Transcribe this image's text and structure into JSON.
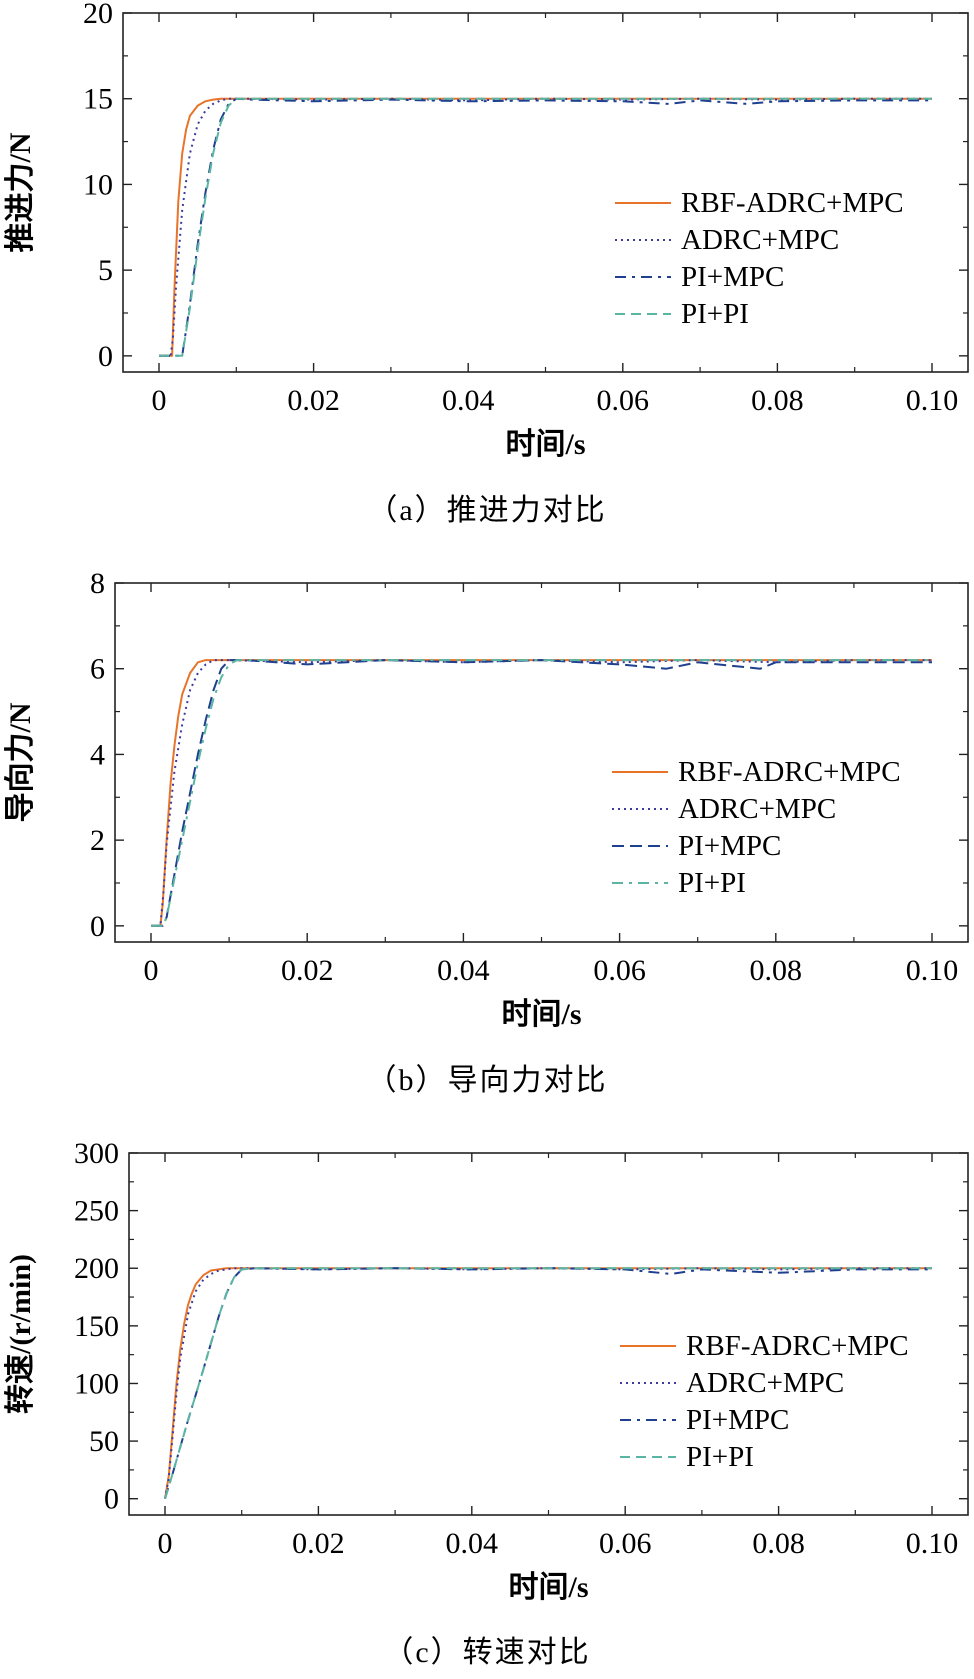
{
  "series_styles": [
    {
      "color": "#e8742a",
      "dash": "",
      "width": 2
    },
    {
      "color": "#3a3aa0",
      "dash": "2 4",
      "width": 2
    },
    {
      "color": "#1f3f8f",
      "dash": "11 6 3 6",
      "width": 2
    },
    {
      "color": "#5ab5a3",
      "dash": "10 6",
      "width": 2
    }
  ],
  "series_styles_b": [
    {
      "color": "#e8742a",
      "dash": "",
      "width": 2
    },
    {
      "color": "#3a3aa0",
      "dash": "2 4",
      "width": 2
    },
    {
      "color": "#1f3f8f",
      "dash": "12 6",
      "width": 2
    },
    {
      "color": "#5ab5a3",
      "dash": "11 6 3 6",
      "width": 2
    }
  ],
  "chart_data": [
    {
      "type": "line",
      "caption": "（a）推进力对比",
      "xlabel": "时间/s",
      "ylabel": "推进力/N",
      "xlim": [
        0,
        0.1
      ],
      "ylim": [
        0,
        20
      ],
      "xticks": [
        0,
        0.02,
        0.04,
        0.06,
        0.08,
        0.1
      ],
      "xtick_labels": [
        "0",
        "0.02",
        "0.04",
        "0.06",
        "0.08",
        "0.10"
      ],
      "yticks": [
        0,
        5,
        10,
        15,
        20
      ],
      "ytick_labels": [
        "0",
        "5",
        "10",
        "15",
        "20"
      ],
      "legend_position": "center-right",
      "series": [
        {
          "name": "RBF-ADRC+MPC",
          "x": [
            0,
            0.0015,
            0.0017,
            0.002,
            0.0025,
            0.003,
            0.0035,
            0.004,
            0.005,
            0.006,
            0.007,
            0.008,
            0.01,
            0.02,
            0.04,
            0.06,
            0.08,
            0.1
          ],
          "y": [
            0,
            0,
            0,
            4,
            9,
            11.8,
            13.2,
            14,
            14.6,
            14.85,
            14.95,
            15,
            15,
            15,
            15,
            15,
            15,
            15
          ]
        },
        {
          "name": "ADRC+MPC",
          "x": [
            0,
            0.0015,
            0.0018,
            0.0022,
            0.003,
            0.004,
            0.005,
            0.006,
            0.007,
            0.008,
            0.009,
            0.01,
            0.011,
            0.02,
            0.03,
            0.04,
            0.05,
            0.06,
            0.07,
            0.08,
            0.09,
            0.1
          ],
          "y": [
            0,
            0,
            1,
            4,
            8.5,
            11.8,
            13.5,
            14.3,
            14.7,
            14.9,
            15,
            15,
            15,
            14.95,
            15,
            14.9,
            15,
            14.95,
            15,
            14.95,
            15,
            15
          ]
        },
        {
          "name": "PI+MPC",
          "x": [
            0,
            0.003,
            0.004,
            0.005,
            0.006,
            0.007,
            0.008,
            0.009,
            0.01,
            0.012,
            0.02,
            0.03,
            0.04,
            0.05,
            0.06,
            0.066,
            0.07,
            0.076,
            0.08,
            0.09,
            0.1
          ],
          "y": [
            0,
            0,
            3,
            6.5,
            9.5,
            12,
            13.8,
            14.7,
            15,
            14.95,
            14.85,
            14.95,
            14.85,
            14.9,
            14.85,
            14.7,
            14.9,
            14.7,
            14.85,
            14.9,
            14.9
          ]
        },
        {
          "name": "PI+PI",
          "x": [
            0,
            0.003,
            0.004,
            0.005,
            0.006,
            0.007,
            0.008,
            0.009,
            0.01,
            0.012,
            0.02,
            0.04,
            0.06,
            0.08,
            0.1
          ],
          "y": [
            0,
            0,
            2.8,
            6.2,
            9.2,
            11.8,
            13.6,
            14.6,
            15,
            15,
            15,
            15,
            15,
            15,
            15
          ]
        }
      ]
    },
    {
      "type": "line",
      "caption": "（b）导向力对比",
      "xlabel": "时间/s",
      "ylabel": "导向力/N",
      "xlim": [
        0,
        0.1
      ],
      "ylim": [
        0,
        8
      ],
      "xticks": [
        0,
        0.02,
        0.04,
        0.06,
        0.08,
        0.1
      ],
      "xtick_labels": [
        "0",
        "0.02",
        "0.04",
        "0.06",
        "0.08",
        "0.10"
      ],
      "yticks": [
        0,
        2,
        4,
        6,
        8
      ],
      "ytick_labels": [
        "0",
        "2",
        "4",
        "6",
        "8"
      ],
      "legend_position": "center-right",
      "series": [
        {
          "name": "RBF-ADRC+MPC",
          "x": [
            0,
            0.0012,
            0.0015,
            0.002,
            0.0025,
            0.003,
            0.0035,
            0.004,
            0.005,
            0.006,
            0.007,
            0.008,
            0.01,
            0.02,
            0.04,
            0.06,
            0.08,
            0.1
          ],
          "y": [
            0,
            0,
            0.5,
            2,
            3.3,
            4.2,
            4.9,
            5.4,
            5.9,
            6.15,
            6.2,
            6.2,
            6.2,
            6.2,
            6.2,
            6.2,
            6.2,
            6.2
          ]
        },
        {
          "name": "ADRC+MPC",
          "x": [
            0,
            0.0012,
            0.0016,
            0.002,
            0.003,
            0.004,
            0.005,
            0.006,
            0.007,
            0.008,
            0.01,
            0.02,
            0.03,
            0.04,
            0.05,
            0.06,
            0.07,
            0.08,
            0.09,
            0.1
          ],
          "y": [
            0,
            0,
            0.8,
            1.9,
            3.6,
            4.7,
            5.5,
            5.9,
            6.1,
            6.2,
            6.2,
            6.15,
            6.2,
            6.15,
            6.2,
            6.15,
            6.2,
            6.15,
            6.2,
            6.2
          ]
        },
        {
          "name": "PI+MPC",
          "x": [
            0,
            0.0015,
            0.002,
            0.003,
            0.004,
            0.005,
            0.006,
            0.007,
            0.008,
            0.009,
            0.01,
            0.012,
            0.02,
            0.03,
            0.04,
            0.05,
            0.06,
            0.066,
            0.07,
            0.078,
            0.08,
            0.09,
            0.1
          ],
          "y": [
            0,
            0,
            0.2,
            1.2,
            2.2,
            3.1,
            4,
            4.8,
            5.5,
            6,
            6.2,
            6.2,
            6.1,
            6.2,
            6.15,
            6.2,
            6.1,
            6.0,
            6.15,
            6.0,
            6.15,
            6.15,
            6.15
          ]
        },
        {
          "name": "PI+PI",
          "x": [
            0,
            0.0015,
            0.002,
            0.003,
            0.004,
            0.005,
            0.006,
            0.007,
            0.008,
            0.009,
            0.01,
            0.011,
            0.012,
            0.02,
            0.04,
            0.06,
            0.08,
            0.1
          ],
          "y": [
            0,
            0,
            0.2,
            1.1,
            2,
            2.9,
            3.8,
            4.6,
            5.3,
            5.8,
            6.1,
            6.2,
            6.2,
            6.2,
            6.2,
            6.2,
            6.2,
            6.2
          ]
        }
      ]
    },
    {
      "type": "line",
      "caption": "（c）转速对比",
      "xlabel": "时间/s",
      "ylabel": "转速/(r/min)",
      "xlim": [
        0,
        0.1
      ],
      "ylim": [
        0,
        300
      ],
      "xticks": [
        0,
        0.02,
        0.04,
        0.06,
        0.08,
        0.1
      ],
      "xtick_labels": [
        "0",
        "0.02",
        "0.04",
        "0.06",
        "0.08",
        "0.10"
      ],
      "yticks": [
        0,
        50,
        100,
        150,
        200,
        250,
        300
      ],
      "ytick_labels": [
        "0",
        "50",
        "100",
        "150",
        "200",
        "250",
        "300"
      ],
      "legend_position": "center-right",
      "series": [
        {
          "name": "RBF-ADRC+MPC",
          "x": [
            0,
            0.0005,
            0.001,
            0.0015,
            0.002,
            0.0025,
            0.003,
            0.0035,
            0.004,
            0.005,
            0.006,
            0.007,
            0.008,
            0.01,
            0.02,
            0.04,
            0.06,
            0.08,
            0.1
          ],
          "y": [
            0,
            20,
            60,
            100,
            130,
            152,
            168,
            178,
            186,
            194,
            198,
            199,
            200,
            200,
            200,
            200,
            200,
            200,
            200
          ]
        },
        {
          "name": "ADRC+MPC",
          "x": [
            0,
            0.0005,
            0.001,
            0.0015,
            0.002,
            0.003,
            0.004,
            0.005,
            0.006,
            0.007,
            0.008,
            0.009,
            0.01,
            0.02,
            0.03,
            0.04,
            0.05,
            0.06,
            0.07,
            0.08,
            0.09,
            0.1
          ],
          "y": [
            0,
            18,
            55,
            92,
            122,
            160,
            180,
            190,
            195,
            198,
            199,
            200,
            200,
            199,
            200,
            199,
            200,
            199,
            200,
            199,
            200,
            200
          ]
        },
        {
          "name": "PI+MPC",
          "x": [
            0,
            0.001,
            0.002,
            0.003,
            0.004,
            0.005,
            0.006,
            0.007,
            0.008,
            0.009,
            0.01,
            0.012,
            0.02,
            0.03,
            0.04,
            0.05,
            0.06,
            0.066,
            0.07,
            0.08,
            0.09,
            0.1
          ],
          "y": [
            0,
            22,
            45,
            68,
            90,
            112,
            135,
            158,
            178,
            192,
            199,
            200,
            199,
            200,
            199,
            200,
            199,
            195,
            199,
            196,
            199,
            199
          ]
        },
        {
          "name": "PI+PI",
          "x": [
            0,
            0.001,
            0.002,
            0.003,
            0.004,
            0.005,
            0.006,
            0.007,
            0.008,
            0.009,
            0.01,
            0.012,
            0.02,
            0.04,
            0.06,
            0.08,
            0.1
          ],
          "y": [
            0,
            22,
            45,
            68,
            90,
            112,
            135,
            158,
            178,
            192,
            199,
            200,
            200,
            200,
            200,
            200,
            200
          ]
        }
      ]
    }
  ]
}
